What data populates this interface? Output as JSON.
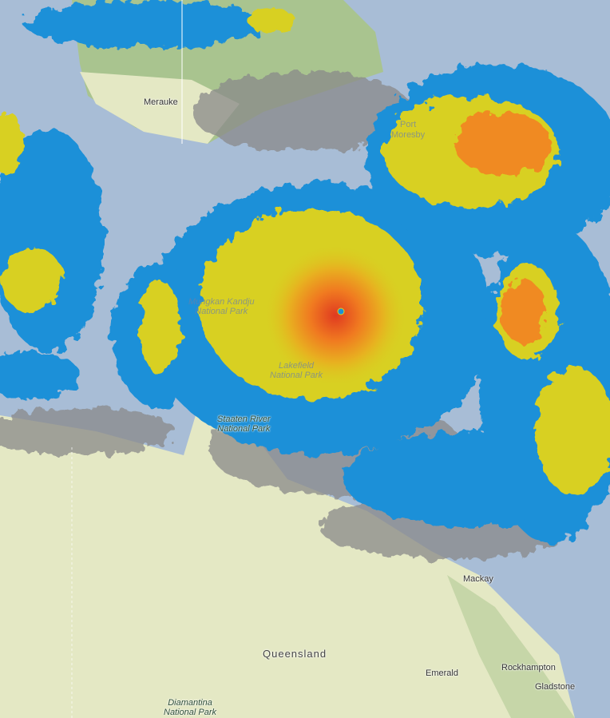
{
  "map": {
    "layer": "satellite cloud / precipitation overlay",
    "colors": {
      "water": "#a8bdd6",
      "land": "#e4e8c4",
      "forest": "#a9c48f",
      "cloud_gray": "#8a8a8a",
      "rain_blue": "#1e90d8",
      "rain_yellow": "#d8d020",
      "rain_orange": "#f08a20",
      "rain_red": "#e03a20"
    },
    "labels": {
      "merauke": "Merauke",
      "port_moresby_1": "Port",
      "port_moresby_2": "Moresby",
      "mungkan_1": "Mungkan Kandju",
      "mungkan_2": "National Park",
      "lakefield_1": "Lakefield",
      "lakefield_2": "National Park",
      "staaten_1": "Staaten River",
      "staaten_2": "National Park",
      "queensland": "Queensland",
      "mackay": "Mackay",
      "emerald": "Emerald",
      "rockhampton": "Rockhampton",
      "gladstone": "Gladstone",
      "diamantina_1": "Diamantina",
      "diamantina_2": "National Park"
    }
  }
}
